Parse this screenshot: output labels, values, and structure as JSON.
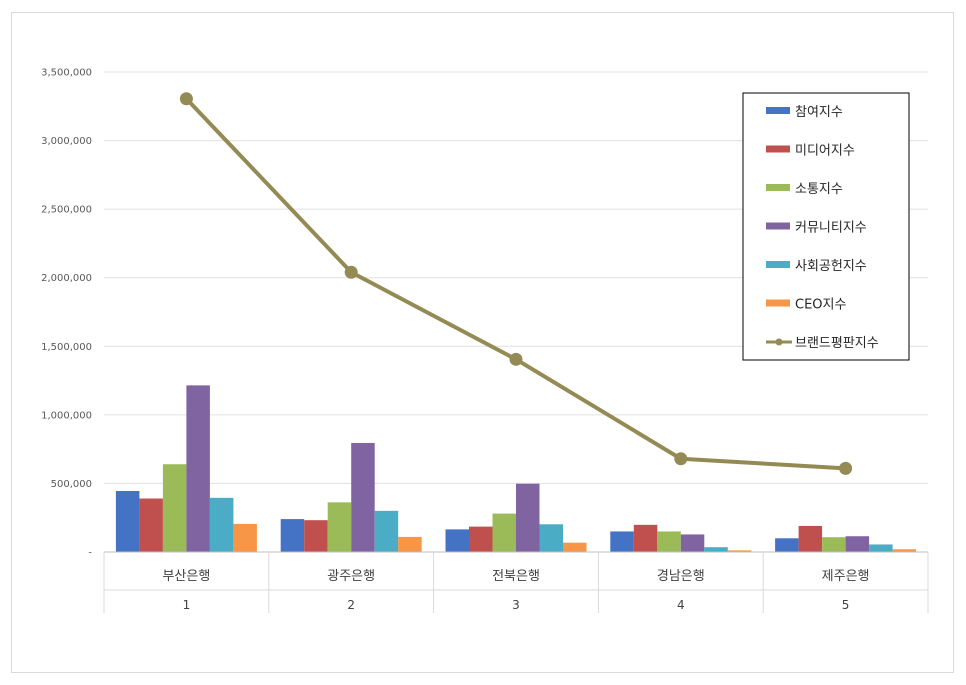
{
  "chart_data": {
    "type": "bar",
    "y_ticks": [
      "-",
      "500,000",
      "1,000,000",
      "1,500,000",
      "2,000,000",
      "2,500,000",
      "3,000,000",
      "3,500,000"
    ],
    "ylim": [
      0,
      3500000
    ],
    "categories": [
      "부산은행",
      "광주은행",
      "전북은행",
      "경남은행",
      "제주은행"
    ],
    "category_index": [
      "1",
      "2",
      "3",
      "4",
      "5"
    ],
    "series": [
      {
        "name": "참여지수",
        "kind": "bar",
        "color": "#4472c4",
        "values": [
          445000,
          240000,
          165000,
          150000,
          100000
        ]
      },
      {
        "name": "미디어지수",
        "kind": "bar",
        "color": "#c0504d",
        "values": [
          390000,
          232000,
          185000,
          198000,
          190000
        ]
      },
      {
        "name": "소통지수",
        "kind": "bar",
        "color": "#9bbb59",
        "values": [
          640000,
          362000,
          280000,
          150000,
          108000
        ]
      },
      {
        "name": "커뮤니티지수",
        "kind": "bar",
        "color": "#8064a2",
        "values": [
          1215000,
          795000,
          498000,
          128000,
          115000
        ]
      },
      {
        "name": "사회공헌지수",
        "kind": "bar",
        "color": "#4bacc6",
        "values": [
          395000,
          300000,
          202000,
          35000,
          55000
        ]
      },
      {
        "name": "CEO지수",
        "kind": "bar",
        "color": "#f79646",
        "values": [
          205000,
          110000,
          68000,
          12000,
          20000
        ]
      },
      {
        "name": "브랜드평판지수",
        "kind": "line",
        "color": "#948a54",
        "values": [
          3305000,
          2040000,
          1405000,
          680000,
          610000
        ]
      }
    ],
    "grid": true,
    "legend_position": "top-right"
  }
}
